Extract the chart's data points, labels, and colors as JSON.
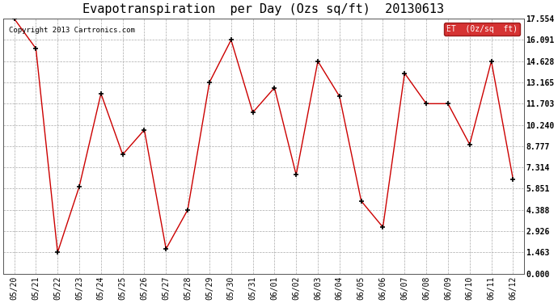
{
  "title": "Evapotranspiration  per Day (Ozs sq/ft)  20130613",
  "copyright": "Copyright 2013 Cartronics.com",
  "legend_label": "ET  (0z/sq  ft)",
  "x_labels": [
    "05/20",
    "05/21",
    "05/22",
    "05/23",
    "05/24",
    "05/25",
    "05/26",
    "05/27",
    "05/28",
    "05/29",
    "05/30",
    "05/31",
    "06/01",
    "06/02",
    "06/03",
    "06/04",
    "06/05",
    "06/06",
    "06/07",
    "06/08",
    "06/09",
    "06/10",
    "06/11",
    "06/12"
  ],
  "y_values": [
    17.554,
    15.5,
    1.463,
    6.0,
    12.4,
    8.2,
    9.9,
    1.7,
    4.4,
    13.165,
    16.091,
    11.1,
    12.8,
    6.8,
    14.628,
    12.2,
    5.0,
    3.2,
    13.8,
    11.703,
    11.703,
    8.9,
    14.628,
    6.5
  ],
  "y_ticks": [
    0.0,
    1.463,
    2.926,
    4.388,
    5.851,
    7.314,
    8.777,
    10.24,
    11.703,
    13.165,
    14.628,
    16.091,
    17.554
  ],
  "line_color": "#cc0000",
  "marker_color": "#000000",
  "legend_bg": "#cc0000",
  "legend_text_color": "#ffffff",
  "bg_color": "#ffffff",
  "grid_color": "#aaaaaa",
  "title_fontsize": 11,
  "copyright_fontsize": 6.5,
  "tick_fontsize": 7,
  "ylim": [
    0.0,
    17.554
  ]
}
